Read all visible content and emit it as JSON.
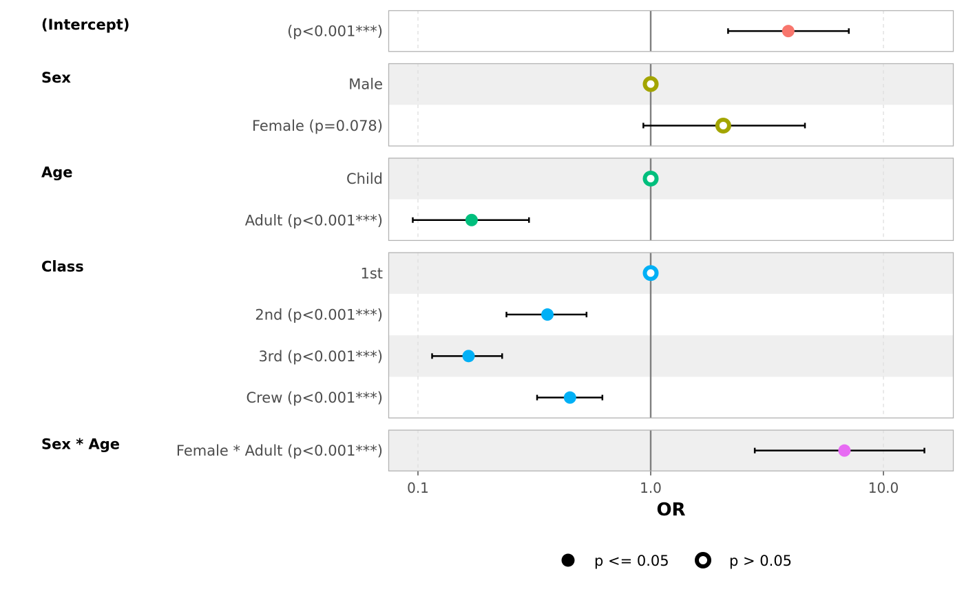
{
  "chart_data": {
    "type": "forest",
    "xlabel": "OR",
    "x_scale": "log10",
    "x_ticks": [
      {
        "value": 0.1,
        "label": "0.1"
      },
      {
        "value": 1.0,
        "label": "1.0"
      },
      {
        "value": 10.0,
        "label": "10.0"
      }
    ],
    "reference_line": 1.0,
    "groups": [
      {
        "name": "(Intercept)",
        "color": "#F8766D",
        "rows": [
          {
            "label": "(p<0.001***)",
            "or": 3.9,
            "lo": 2.15,
            "hi": 7.1,
            "significant": true
          }
        ]
      },
      {
        "name": "Sex",
        "color": "#A3A500",
        "rows": [
          {
            "label": "Male",
            "or": 1.0,
            "significant": false
          },
          {
            "label": "Female (p=0.078)",
            "or": 2.05,
            "lo": 0.93,
            "hi": 4.6,
            "significant": false
          }
        ]
      },
      {
        "name": "Age",
        "color": "#00BF7D",
        "rows": [
          {
            "label": "Child",
            "or": 1.0,
            "significant": false
          },
          {
            "label": "Adult (p<0.001***)",
            "or": 0.17,
            "lo": 0.095,
            "hi": 0.3,
            "significant": true
          }
        ]
      },
      {
        "name": "Class",
        "color": "#00B0F6",
        "rows": [
          {
            "label": "1st",
            "or": 1.0,
            "significant": false
          },
          {
            "label": "2nd (p<0.001***)",
            "or": 0.36,
            "lo": 0.24,
            "hi": 0.53,
            "significant": true
          },
          {
            "label": "3rd (p<0.001***)",
            "or": 0.165,
            "lo": 0.115,
            "hi": 0.23,
            "significant": true
          },
          {
            "label": "Crew (p<0.001***)",
            "or": 0.45,
            "lo": 0.325,
            "hi": 0.62,
            "significant": true
          }
        ]
      },
      {
        "name": "Sex * Age",
        "color": "#E76BF3",
        "rows": [
          {
            "label": "Female * Adult (p<0.001***)",
            "or": 6.8,
            "lo": 2.8,
            "hi": 15.0,
            "significant": true
          }
        ]
      }
    ],
    "legend": {
      "position": "bottom",
      "entries": [
        {
          "label": "p <= 0.05",
          "significant": true
        },
        {
          "label": "p > 0.05",
          "significant": false
        }
      ]
    }
  }
}
